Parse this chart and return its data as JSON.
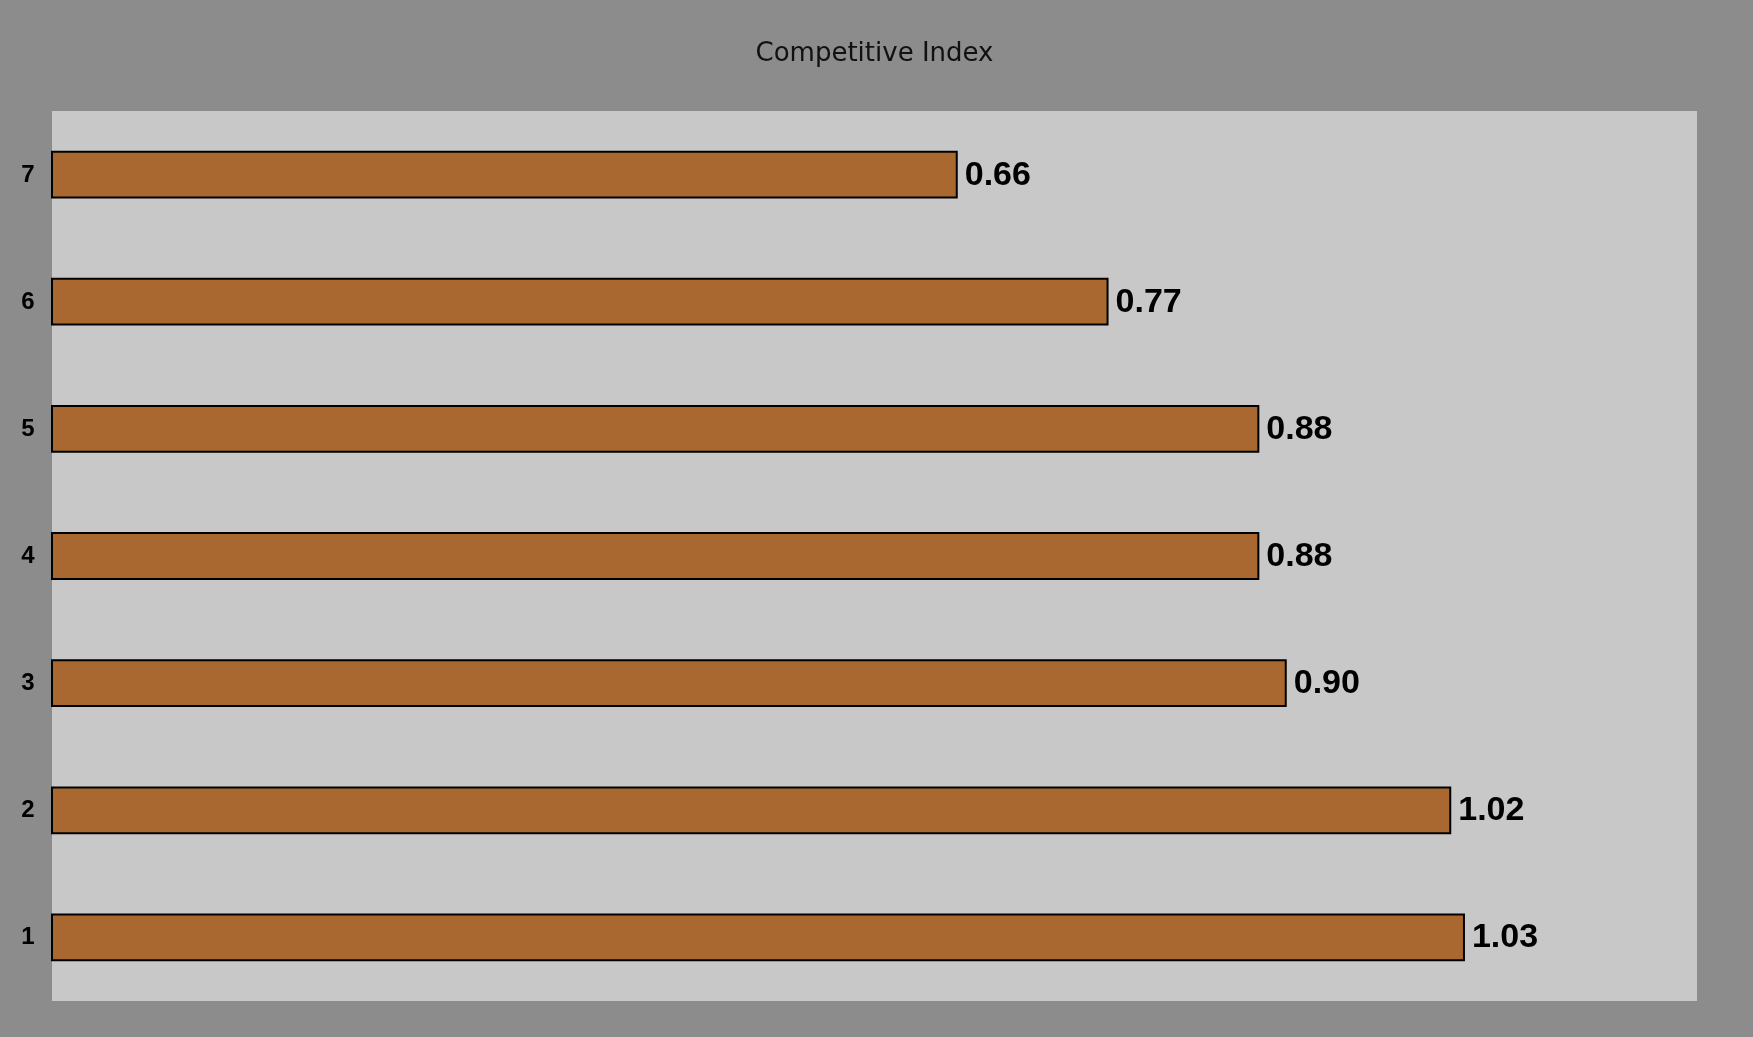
{
  "chart_data": {
    "type": "bar",
    "title": "Competitive Index",
    "orientation": "horizontal",
    "categories": [
      "7",
      "6",
      "5",
      "4",
      "3",
      "2",
      "1"
    ],
    "values": [
      0.66,
      0.77,
      0.88,
      0.88,
      0.9,
      1.02,
      1.03
    ],
    "value_labels": [
      "0.66",
      "0.77",
      "0.88",
      "0.88",
      "0.90",
      "1.02",
      "1.03"
    ],
    "color": "#a8682f",
    "tick_labels": "y"
  }
}
